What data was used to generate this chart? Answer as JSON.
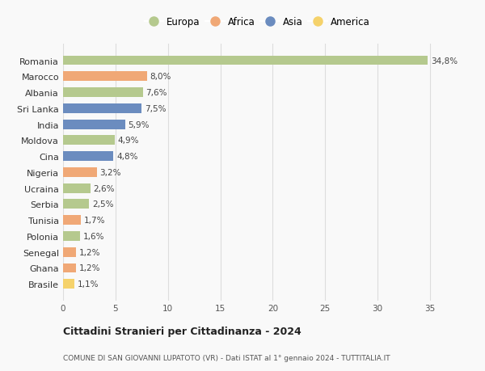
{
  "countries": [
    "Romania",
    "Marocco",
    "Albania",
    "Sri Lanka",
    "India",
    "Moldova",
    "Cina",
    "Nigeria",
    "Ucraina",
    "Serbia",
    "Tunisia",
    "Polonia",
    "Senegal",
    "Ghana",
    "Brasile"
  ],
  "values": [
    34.8,
    8.0,
    7.6,
    7.5,
    5.9,
    4.9,
    4.8,
    3.2,
    2.6,
    2.5,
    1.7,
    1.6,
    1.2,
    1.2,
    1.1
  ],
  "labels": [
    "34,8%",
    "8,0%",
    "7,6%",
    "7,5%",
    "5,9%",
    "4,9%",
    "4,8%",
    "3,2%",
    "2,6%",
    "2,5%",
    "1,7%",
    "1,6%",
    "1,2%",
    "1,2%",
    "1,1%"
  ],
  "continents": [
    "Europa",
    "Africa",
    "Europa",
    "Asia",
    "Asia",
    "Europa",
    "Asia",
    "Africa",
    "Europa",
    "Europa",
    "Africa",
    "Europa",
    "Africa",
    "Africa",
    "America"
  ],
  "continent_colors": {
    "Europa": "#b5c98e",
    "Africa": "#f0a876",
    "Asia": "#6b8cbf",
    "America": "#f5d26b"
  },
  "legend_order": [
    "Europa",
    "Africa",
    "Asia",
    "America"
  ],
  "title1": "Cittadini Stranieri per Cittadinanza - 2024",
  "title2": "COMUNE DI SAN GIOVANNI LUPATOTO (VR) - Dati ISTAT al 1° gennaio 2024 - TUTTITALIA.IT",
  "xlim": [
    0,
    37
  ],
  "xticks": [
    0,
    5,
    10,
    15,
    20,
    25,
    30,
    35
  ],
  "background_color": "#f9f9f9",
  "grid_color": "#dddddd",
  "bar_height": 0.6
}
